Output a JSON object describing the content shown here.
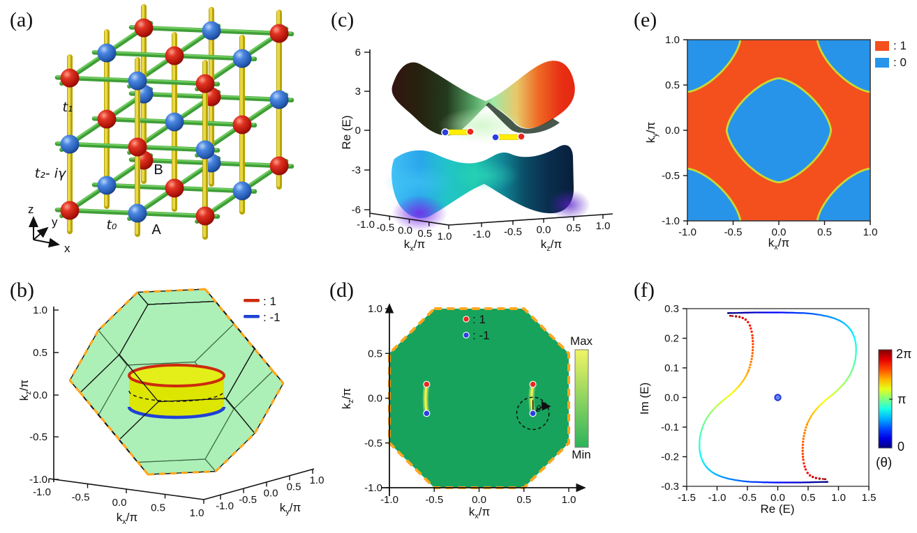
{
  "figure": {
    "background": "#ffffff"
  },
  "colors": {
    "bz_dash_orange": "#ffa61e",
    "phase_one_orange": "#f3501e",
    "phase_zero_blue": "#2794ea",
    "contour_yellow": "#ccd831",
    "bz_face_green": "#7de88f",
    "bz_edge_black": "#151515",
    "cylinder_yellow": "#dde600",
    "ring_plus_red": "#cc2a0e",
    "ring_minus_blue": "#1f41d6",
    "d_field_green": "#17a35c",
    "d_cbar_max": "#f1f464",
    "d_cbar_min": "#2cb45c",
    "ep_plus_red": "#e8281e",
    "ep_minus_blue": "#2a3fe0",
    "arc_yellow": "#eef23c",
    "bar_yellow": "#ffee00",
    "sphere_red": "#d4281a",
    "sphere_blue": "#3a78d8",
    "rod_green": "#4eb848",
    "rod_yellow": "#d9c300"
  },
  "chart_data": [
    {
      "panel": "(a)",
      "type": "lattice-schematic-3d",
      "hoppings": {
        "t1": "t₁",
        "t2": "t₂- iγ",
        "t0": "t₀"
      },
      "site_labels": {
        "B": "B",
        "A": "A"
      },
      "axis_triad": {
        "x": "x",
        "y": "y",
        "z": "z"
      },
      "lattice": {
        "nx": 3,
        "ny": 3,
        "nz": 3,
        "A_color": "#3a78d8",
        "B_color": "#d4281a",
        "z_bond_color": "#d9c300",
        "xy_bond_color": "#4eb848"
      }
    },
    {
      "panel": "(b)",
      "type": "3d-brillouin-zone",
      "bz_shape": "truncated octahedron",
      "legend": [
        {
          "label": ":  1",
          "color": "#cc2a0e"
        },
        {
          "label": ": -1",
          "color": "#1f41d6"
        }
      ],
      "axes": {
        "kx": {
          "sym": "k",
          "sub": "x",
          "den": "/π",
          "ticks": [
            "-1.0",
            "-0.5",
            "0.0",
            "0.5",
            "1.0"
          ],
          "range": [
            -1,
            1
          ]
        },
        "ky": {
          "sym": "k",
          "sub": "y",
          "den": "/π",
          "ticks": [
            "-1.0",
            "-0.5",
            "0.0",
            "0.5",
            "1.0"
          ],
          "range": [
            -1,
            1
          ]
        },
        "kz": {
          "sym": "k",
          "sub": "z",
          "den": "/π",
          "ticks": [
            "1.0",
            "0.5",
            "0.0",
            "-0.5",
            "-1.0"
          ],
          "range": [
            -1,
            1
          ]
        }
      },
      "exceptional_rings": [
        {
          "winding": 1,
          "kz_over_pi": 0.15,
          "radius_over_pi": 0.55,
          "color": "#cc2a0e"
        },
        {
          "winding": -1,
          "kz_over_pi": -0.2,
          "radius_over_pi": 0.55,
          "color": "#1f41d6"
        }
      ],
      "fermi_cylinder_color": "#dde600"
    },
    {
      "panel": "(c)",
      "type": "3d-surface",
      "zlabel": "Re (E)",
      "z_ticks": [
        "6",
        "3",
        "0",
        "-3",
        "-6"
      ],
      "zlim": [
        -6,
        6
      ],
      "x_axis": {
        "sym": "k",
        "sub": "x",
        "den": "/π",
        "ticks": [
          "-1.0",
          "-0.5",
          "0.0",
          "0.5",
          "1.0"
        ],
        "range": [
          -1,
          1
        ]
      },
      "y_axis": {
        "sym": "k",
        "sub": "z",
        "den": "/π",
        "ticks": [
          "-1.0",
          "-0.5",
          "0.0",
          "0.5",
          "1.0"
        ],
        "range": [
          -1,
          1
        ]
      },
      "bands": 2,
      "ep_pairs": [
        {
          "minus": [
            -0.585,
            -0.17
          ],
          "plus": [
            -0.585,
            0.155
          ]
        },
        {
          "minus": [
            0.6,
            -0.17
          ],
          "plus": [
            0.6,
            0.155
          ]
        }
      ]
    },
    {
      "panel": "(d)",
      "type": "heatmap",
      "xlabel": {
        "sym": "k",
        "sub": "x",
        "den": "/π"
      },
      "ylabel": {
        "sym": "k",
        "sub": "z",
        "den": "/π"
      },
      "x_ticks": [
        "-1.0",
        "-0.5",
        "0.0",
        "0.5",
        "1.0"
      ],
      "y_ticks": [
        "1.0",
        "0.5",
        "0.0",
        "-0.5",
        "-1.0"
      ],
      "xlim": [
        -1,
        1
      ],
      "ylim": [
        -1,
        1
      ],
      "legend": [
        {
          "label": ":  1",
          "color": "#e8281e"
        },
        {
          "label": ": -1",
          "color": "#2a3fe0"
        }
      ],
      "colorbar": {
        "max_label": "Max",
        "min_label": "Min",
        "max_color": "#f1f464",
        "min_color": "#2cb45c"
      },
      "field_color": "#17a35c",
      "bz_octagon_vertices": [
        [
          -0.5,
          1
        ],
        [
          0.5,
          1
        ],
        [
          1,
          0.5
        ],
        [
          1,
          -0.5
        ],
        [
          0.5,
          -1
        ],
        [
          -0.5,
          -1
        ],
        [
          -1,
          -0.5
        ],
        [
          -1,
          0.5
        ]
      ],
      "fermi_arcs": [
        {
          "kx": -0.585,
          "kz_from": -0.17,
          "kz_to": 0.155,
          "bow": -0.025
        },
        {
          "kx": 0.6,
          "kz_from": -0.17,
          "kz_to": 0.155,
          "bow": -0.032
        }
      ],
      "exceptional_points": [
        {
          "kx": -0.585,
          "kz": 0.155,
          "charge": 1
        },
        {
          "kx": -0.585,
          "kz": -0.17,
          "charge": -1
        },
        {
          "kx": 0.6,
          "kz": 0.155,
          "charge": 1
        },
        {
          "kx": 0.6,
          "kz": -0.17,
          "charge": -1
        }
      ],
      "theta_loop": {
        "center": [
          0.6,
          -0.17
        ],
        "radius": 0.18,
        "label": "θ"
      }
    },
    {
      "panel": "(e)",
      "type": "phase-map",
      "xlabel": {
        "sym": "k",
        "sub": "x",
        "den": "/π"
      },
      "ylabel": {
        "sym": "k",
        "sub": "y",
        "den": "/π"
      },
      "x_ticks": [
        "-1.0",
        "-0.5",
        "0.0",
        "0.5",
        "1.0"
      ],
      "y_ticks": [
        "1.0",
        "0.5",
        "0.0",
        "-0.5",
        "-1.0"
      ],
      "xlim": [
        -1,
        1
      ],
      "ylim": [
        -1,
        1
      ],
      "legend": [
        {
          "label": ": 1",
          "color": "#f3501e"
        },
        {
          "label": ": 0",
          "color": "#2794ea"
        }
      ],
      "regions": {
        "winding_1_color": "#f3501e",
        "winding_0_color": "#2794ea",
        "boundary_color": "#ccd831",
        "center_blob": {
          "center": [
            0,
            0
          ],
          "radius": 0.57,
          "superellipse_n": 1.5
        },
        "corner_blob": {
          "radius": 0.58,
          "superellipse_n": 1.5,
          "centers": [
            [
              1,
              1
            ],
            [
              1,
              -1
            ],
            [
              -1,
              1
            ],
            [
              -1,
              -1
            ]
          ]
        }
      }
    },
    {
      "panel": "(f)",
      "type": "scatter",
      "xlabel": "Re (E)",
      "ylabel": "Im (E)",
      "x_ticks": [
        "-1.5",
        "-1.0",
        "-0.5",
        "0.0",
        "0.5",
        "1.0",
        "1.5"
      ],
      "y_ticks": [
        "0.3",
        "0.2",
        "0.1",
        "0.0",
        "-0.1",
        "-0.2",
        "-0.3"
      ],
      "xlim": [
        -1.5,
        1.5
      ],
      "ylim": [
        -0.3,
        0.3
      ],
      "colorbar": {
        "top_label": "2π",
        "mid_label": "π",
        "bottom_label": "0",
        "title": "(θ)",
        "colormap": "jet",
        "range": [
          0,
          6.283
        ]
      },
      "isolated_point": [
        0,
        0
      ],
      "curves": [
        {
          "name": "branch-1",
          "points": [
            [
              0.82,
              -0.285
            ],
            [
              0.6,
              -0.286
            ],
            [
              0.38,
              -0.287
            ],
            [
              0.16,
              -0.287
            ],
            [
              -0.06,
              -0.287
            ],
            [
              -0.28,
              -0.286
            ],
            [
              -0.5,
              -0.284
            ],
            [
              -0.72,
              -0.278
            ],
            [
              -0.92,
              -0.268
            ],
            [
              -1.08,
              -0.252
            ],
            [
              -1.2,
              -0.228
            ],
            [
              -1.27,
              -0.196
            ],
            [
              -1.29,
              -0.16
            ],
            [
              -1.27,
              -0.122
            ],
            [
              -1.21,
              -0.086
            ],
            [
              -1.12,
              -0.055
            ],
            [
              -1.01,
              -0.03
            ],
            [
              -0.89,
              -0.008
            ],
            [
              -0.77,
              0.012
            ],
            [
              -0.66,
              0.034
            ],
            [
              -0.56,
              0.06
            ],
            [
              -0.48,
              0.092
            ],
            [
              -0.43,
              0.13
            ],
            [
              -0.41,
              0.17
            ],
            [
              -0.42,
              0.21
            ],
            [
              -0.46,
              0.243
            ],
            [
              -0.53,
              0.263
            ],
            [
              -0.63,
              0.272
            ],
            [
              -0.74,
              0.275
            ],
            [
              -0.8,
              0.276
            ]
          ]
        },
        {
          "name": "branch-2",
          "points": [
            [
              -0.82,
              0.285
            ],
            [
              -0.6,
              0.286
            ],
            [
              -0.38,
              0.287
            ],
            [
              -0.16,
              0.287
            ],
            [
              0.06,
              0.287
            ],
            [
              0.28,
              0.286
            ],
            [
              0.5,
              0.284
            ],
            [
              0.72,
              0.278
            ],
            [
              0.92,
              0.268
            ],
            [
              1.08,
              0.252
            ],
            [
              1.2,
              0.228
            ],
            [
              1.27,
              0.196
            ],
            [
              1.29,
              0.16
            ],
            [
              1.27,
              0.122
            ],
            [
              1.21,
              0.086
            ],
            [
              1.12,
              0.055
            ],
            [
              1.01,
              0.03
            ],
            [
              0.89,
              0.008
            ],
            [
              0.77,
              -0.012
            ],
            [
              0.66,
              -0.034
            ],
            [
              0.56,
              -0.06
            ],
            [
              0.48,
              -0.092
            ],
            [
              0.43,
              -0.13
            ],
            [
              0.41,
              -0.17
            ],
            [
              0.42,
              -0.21
            ],
            [
              0.46,
              -0.243
            ],
            [
              0.53,
              -0.263
            ],
            [
              0.63,
              -0.272
            ],
            [
              0.74,
              -0.275
            ],
            [
              0.8,
              -0.276
            ]
          ]
        }
      ]
    }
  ]
}
